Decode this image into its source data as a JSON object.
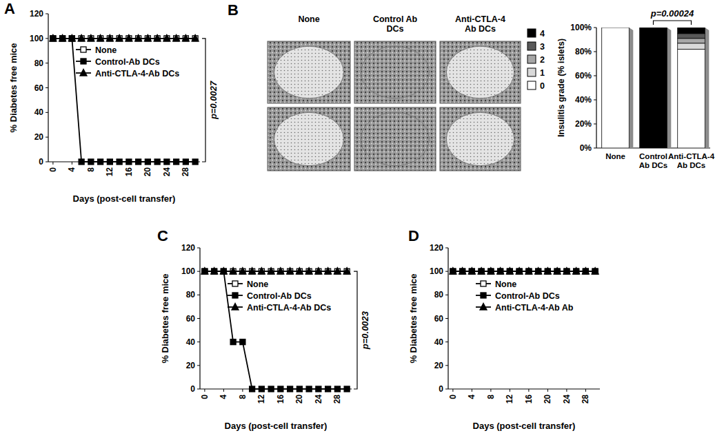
{
  "chart_data": [
    {
      "type": "line",
      "title": "A",
      "x_label": "Days (post-cell transfer)",
      "y_label": "% Diabetes free mice",
      "x": [
        0,
        2,
        4,
        6,
        8,
        10,
        12,
        14,
        16,
        18,
        20,
        22,
        24,
        26,
        28,
        30
      ],
      "xlim": [
        -1,
        31
      ],
      "xticks": [
        0,
        4,
        8,
        12,
        16,
        20,
        24,
        28
      ],
      "ylim": [
        0,
        120
      ],
      "yticks": [
        0,
        20,
        40,
        60,
        80,
        100,
        120
      ],
      "legend": "upper left",
      "annotations": [
        "p=0.0027"
      ],
      "series": [
        {
          "name": "None",
          "color": "#000000",
          "marker": "square-open",
          "values": [
            100,
            100,
            100,
            100,
            100,
            100,
            100,
            100,
            100,
            100,
            100,
            100,
            100,
            100,
            100,
            100
          ]
        },
        {
          "name": "Control-Ab DCs",
          "color": "#000000",
          "marker": "square",
          "values": [
            100,
            100,
            100,
            0,
            0,
            0,
            0,
            0,
            0,
            0,
            0,
            0,
            0,
            0,
            0,
            0
          ]
        },
        {
          "name": "Anti-CTLA-4-Ab DCs",
          "color": "#000000",
          "marker": "triangle",
          "values": [
            100,
            100,
            100,
            100,
            100,
            100,
            100,
            100,
            100,
            100,
            100,
            100,
            100,
            100,
            100,
            100
          ]
        }
      ]
    },
    {
      "type": "bar",
      "stacked": true,
      "title": "B",
      "image_labels": [
        "None",
        "Control Ab DCs",
        "Anti-CTLA-4 Ab DCs"
      ],
      "categories": [
        "None",
        "Control Ab DCs",
        "Anti-CTLA-4 Ab DCs"
      ],
      "y_label": "Insulitis grade (% islets)",
      "ylim": [
        0,
        100
      ],
      "yticks": [
        {
          "value": 0,
          "label": "0%"
        },
        {
          "value": 20,
          "label": "20%"
        },
        {
          "value": 40,
          "label": "40%"
        },
        {
          "value": 60,
          "label": "60%"
        },
        {
          "value": 80,
          "label": "80%"
        },
        {
          "value": 100,
          "label": "100%"
        }
      ],
      "legend": "left",
      "annotations": [
        "p=0.00024"
      ],
      "series": [
        {
          "name": "0",
          "color": "#ffffff",
          "values": [
            100,
            0,
            82
          ]
        },
        {
          "name": "1",
          "color": "#d9d9d9",
          "values": [
            0,
            0,
            5
          ]
        },
        {
          "name": "2",
          "color": "#a6a6a6",
          "values": [
            0,
            0,
            4
          ]
        },
        {
          "name": "3",
          "color": "#595959",
          "values": [
            0,
            0,
            4
          ]
        },
        {
          "name": "4",
          "color": "#000000",
          "values": [
            0,
            100,
            5
          ]
        }
      ]
    },
    {
      "type": "line",
      "title": "C",
      "x_label": "Days (post-cell transfer)",
      "y_label": "% Diabetes free mice",
      "x": [
        0,
        2,
        4,
        6,
        8,
        10,
        12,
        14,
        16,
        18,
        20,
        22,
        24,
        26,
        28,
        30
      ],
      "xlim": [
        -1,
        31
      ],
      "xticks": [
        0,
        4,
        8,
        12,
        16,
        20,
        24,
        28
      ],
      "ylim": [
        0,
        120
      ],
      "yticks": [
        0,
        20,
        40,
        60,
        80,
        100,
        120
      ],
      "legend": "upper left",
      "annotations": [
        "p=0.0023"
      ],
      "series": [
        {
          "name": "None",
          "color": "#000000",
          "marker": "square-open",
          "values": [
            100,
            100,
            100,
            100,
            100,
            100,
            100,
            100,
            100,
            100,
            100,
            100,
            100,
            100,
            100,
            100
          ]
        },
        {
          "name": "Control-Ab DCs",
          "color": "#000000",
          "marker": "square",
          "values": [
            100,
            100,
            100,
            40,
            40,
            0,
            0,
            0,
            0,
            0,
            0,
            0,
            0,
            0,
            0,
            0
          ]
        },
        {
          "name": "Anti-CTLA-4-Ab DCs",
          "color": "#000000",
          "marker": "triangle",
          "values": [
            100,
            100,
            100,
            100,
            100,
            100,
            100,
            100,
            100,
            100,
            100,
            100,
            100,
            100,
            100,
            100
          ]
        }
      ]
    },
    {
      "type": "line",
      "title": "D",
      "x_label": "Days (post-cell transfer)",
      "y_label": "% Diabetes free mice",
      "x": [
        0,
        2,
        4,
        6,
        8,
        10,
        12,
        14,
        16,
        18,
        20,
        22,
        24,
        26,
        28,
        30
      ],
      "xlim": [
        -1,
        31
      ],
      "xticks": [
        0,
        4,
        8,
        12,
        16,
        20,
        24,
        28
      ],
      "ylim": [
        0,
        120
      ],
      "yticks": [
        0,
        20,
        40,
        60,
        80,
        100,
        120
      ],
      "legend": "upper left",
      "series": [
        {
          "name": "None",
          "color": "#000000",
          "marker": "square-open",
          "values": [
            100,
            100,
            100,
            100,
            100,
            100,
            100,
            100,
            100,
            100,
            100,
            100,
            100,
            100,
            100,
            100
          ]
        },
        {
          "name": "Control-Ab DCs",
          "color": "#000000",
          "marker": "square",
          "values": [
            100,
            100,
            100,
            100,
            100,
            100,
            100,
            100,
            100,
            100,
            100,
            100,
            100,
            100,
            100,
            100
          ]
        },
        {
          "name": "Anti-CTLA-4-Ab Ab",
          "color": "#000000",
          "marker": "triangle",
          "values": [
            100,
            100,
            100,
            100,
            100,
            100,
            100,
            100,
            100,
            100,
            100,
            100,
            100,
            100,
            100,
            100
          ]
        }
      ]
    }
  ]
}
